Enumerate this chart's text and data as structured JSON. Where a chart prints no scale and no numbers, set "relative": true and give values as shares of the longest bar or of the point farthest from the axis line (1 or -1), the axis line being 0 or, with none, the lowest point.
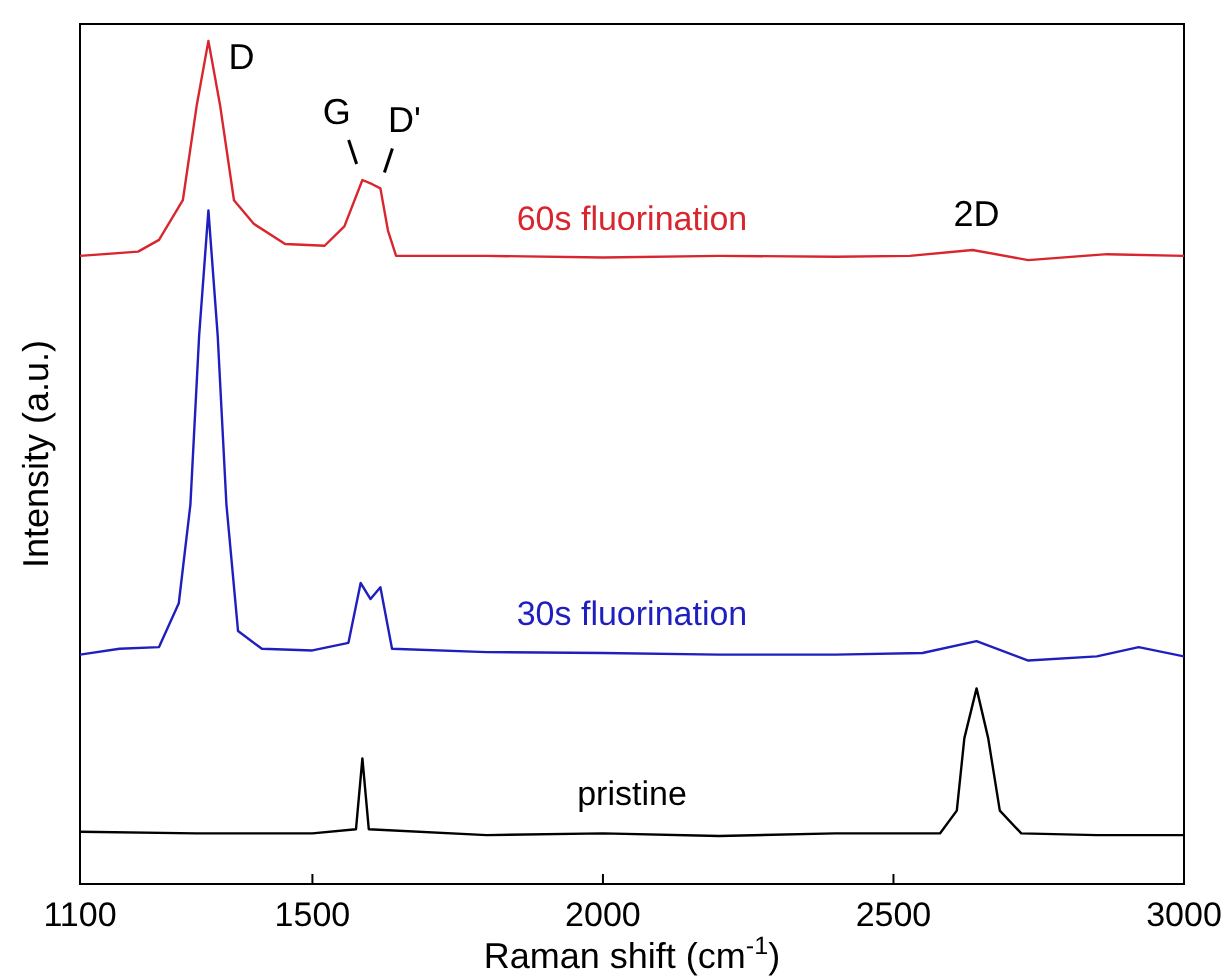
{
  "chart_data": {
    "type": "line",
    "relative": true,
    "xlabel": "Raman shift (cm$^{-1}$)",
    "ylabel": "Intensity (a.u.)",
    "xlim": [
      1100,
      3000
    ],
    "xticks": [
      1100,
      1500,
      2000,
      2500,
      3000
    ],
    "marker": "none",
    "line_style": "solid",
    "series": [
      {
        "name": "60s fluorination",
        "color": "#d9262e",
        "x": [
          1100,
          1200,
          1236,
          1277,
          1301,
          1321,
          1341,
          1365,
          1399,
          1453,
          1521,
          1555,
          1586,
          1603,
          1617,
          1630,
          1644,
          1800,
          2000,
          2200,
          2400,
          2528,
          2636,
          2732,
          2868,
          3000
        ],
        "values": [
          0.745,
          0.75,
          0.764,
          0.811,
          0.924,
          1.0,
          0.924,
          0.811,
          0.783,
          0.759,
          0.757,
          0.78,
          0.835,
          0.83,
          0.825,
          0.775,
          0.745,
          0.745,
          0.743,
          0.745,
          0.744,
          0.745,
          0.752,
          0.74,
          0.747,
          0.745
        ]
      },
      {
        "name": "30s fluorination",
        "color": "#1f1fbf",
        "x": [
          1100,
          1168,
          1236,
          1270,
          1290,
          1305,
          1321,
          1337,
          1352,
          1372,
          1413,
          1500,
          1562,
          1583,
          1600,
          1617,
          1637,
          1800,
          2000,
          2200,
          2400,
          2550,
          2643,
          2732,
          2850,
          2922,
          3000
        ],
        "values": [
          0.272,
          0.279,
          0.281,
          0.333,
          0.45,
          0.65,
          0.799,
          0.65,
          0.45,
          0.3,
          0.279,
          0.277,
          0.286,
          0.357,
          0.338,
          0.352,
          0.279,
          0.275,
          0.274,
          0.272,
          0.272,
          0.274,
          0.288,
          0.265,
          0.27,
          0.281,
          0.27
        ]
      },
      {
        "name": "pristine",
        "color": "#000000",
        "x": [
          1100,
          1300,
          1500,
          1575,
          1586,
          1597,
          1800,
          2000,
          2200,
          2400,
          2580,
          2609,
          2622,
          2643,
          2663,
          2683,
          2720,
          2850,
          3000
        ],
        "values": [
          0.062,
          0.06,
          0.06,
          0.065,
          0.149,
          0.065,
          0.058,
          0.06,
          0.057,
          0.06,
          0.06,
          0.087,
          0.173,
          0.232,
          0.173,
          0.087,
          0.06,
          0.058,
          0.058
        ]
      }
    ],
    "annotations": [
      {
        "text": "D",
        "x": 1321,
        "y": 1.0
      },
      {
        "text": "G",
        "x": 1583,
        "y": 0.835
      },
      {
        "text": "D'",
        "x": 1617,
        "y": 0.825
      },
      {
        "text": "2D",
        "x": 2643,
        "y": 0.752
      }
    ]
  }
}
